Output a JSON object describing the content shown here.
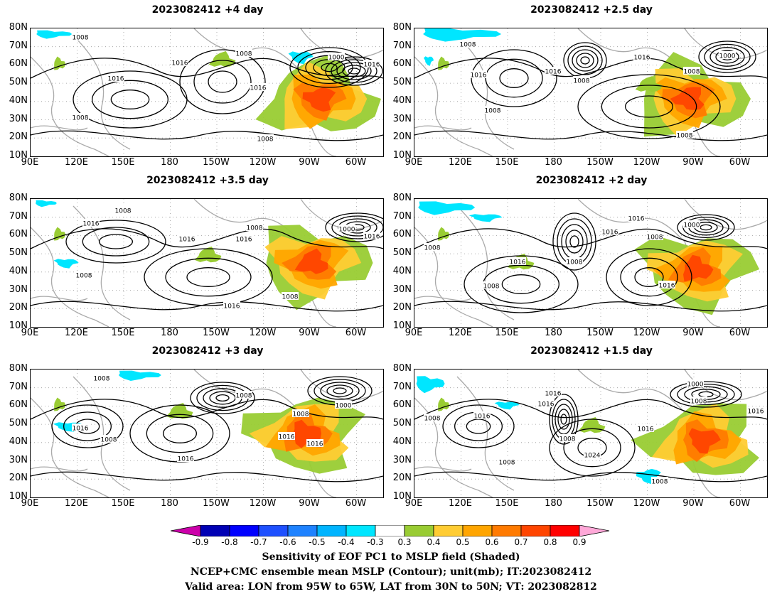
{
  "panels": [
    {
      "title": "2023082412 +4 day"
    },
    {
      "title": "2023082412 +2.5 day"
    },
    {
      "title": "2023082412 +3.5 day"
    },
    {
      "title": "2023082412 +2 day"
    },
    {
      "title": "2023082412 +3 day"
    },
    {
      "title": "2023082412 +1.5 day"
    }
  ],
  "axes": {
    "lat_labels": [
      "80N",
      "70N",
      "60N",
      "50N",
      "40N",
      "30N",
      "20N",
      "10N"
    ],
    "lon_labels": [
      "90E",
      "120E",
      "150E",
      "180",
      "150W",
      "120W",
      "90W",
      "60W"
    ]
  },
  "contour_labels": {
    "l1008": "1008",
    "l1016": "1016",
    "l1000": "1000",
    "l1024": "1024"
  },
  "colorbar": {
    "labels": [
      "-0.9",
      "-0.8",
      "-0.7",
      "-0.6",
      "-0.5",
      "-0.4",
      "-0.3",
      "0.3",
      "0.4",
      "0.5",
      "0.6",
      "0.7",
      "0.8",
      "0.9"
    ],
    "colors": [
      "#0000b4",
      "#0000ff",
      "#1e50ff",
      "#1e82ff",
      "#00b4ff",
      "#00e6ff",
      "#ffffff",
      "#99cc33",
      "#ffcc33",
      "#ffa500",
      "#ff7a00",
      "#ff4500",
      "#ff0000"
    ],
    "left_arrow_color": "#cc00aa",
    "right_arrow_color": "#ffa8d8"
  },
  "captions": {
    "line1": "Sensitivity of EOF PC1 to MSLP field (Shaded)",
    "line2": "NCEP+CMC ensemble mean MSLP (Contour); unit(mb); IT:2023082412",
    "line3": "Valid area: LON from 95W to 65W, LAT from 30N to 50N; VT: 2023082812"
  }
}
